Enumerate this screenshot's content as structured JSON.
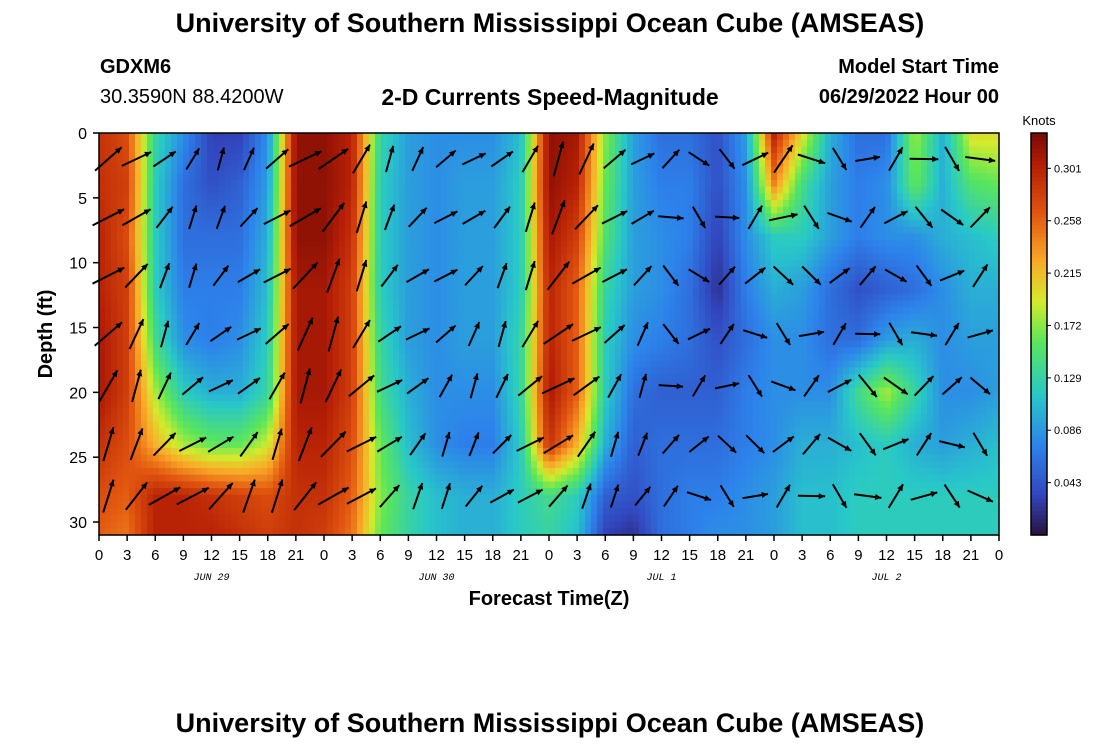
{
  "header": {
    "title": "University of Southern Mississippi Ocean Cube (AMSEAS)",
    "station": "GDXM6",
    "coords": "30.3590N  88.4200W",
    "subtitle": "2-D Currents Speed-Magnitude",
    "start_label": "Model Start Time",
    "start_value": "06/29/2022 Hour 00"
  },
  "footer": {
    "title": "University of Southern Mississippi Ocean Cube (AMSEAS)"
  },
  "chart_data": {
    "type": "heatmap",
    "xlabel": "Forecast Time(Z)",
    "ylabel": "Depth (ft)",
    "x_ticks": [
      "0",
      "3",
      "6",
      "9",
      "12",
      "15",
      "18",
      "21",
      "0",
      "3",
      "6",
      "9",
      "12",
      "15",
      "18",
      "21",
      "0",
      "3",
      "6",
      "9",
      "12",
      "15",
      "18",
      "21",
      "0",
      "3",
      "6",
      "9",
      "12",
      "15",
      "18",
      "21",
      "0"
    ],
    "date_labels": [
      "JUN 29",
      "JUN 30",
      "JUL 1",
      "JUL 2"
    ],
    "y_ticks": [
      0,
      5,
      10,
      15,
      20,
      25,
      30
    ],
    "ylim": [
      0,
      31
    ],
    "xlim_hours": [
      0,
      96
    ],
    "colorbar": {
      "unit": "Knots",
      "ticks": [
        0.301,
        0.258,
        0.215,
        0.172,
        0.129,
        0.086,
        0.043
      ],
      "range": [
        0.0,
        0.33
      ]
    },
    "field_description": "Approximate speed (knots) by forecast hour and depth band",
    "depths_ft": [
      0,
      4,
      8,
      12,
      16,
      20,
      24,
      28,
      31
    ],
    "hours": [
      0,
      3,
      6,
      9,
      12,
      15,
      18,
      21,
      24,
      27,
      30,
      33,
      36,
      39,
      42,
      45,
      48,
      51,
      54,
      57,
      60,
      63,
      66,
      69,
      72,
      75,
      78,
      81,
      84,
      87,
      90,
      93,
      96
    ],
    "speed": [
      [
        0.29,
        0.27,
        0.13,
        0.08,
        0.03,
        0.03,
        0.08,
        0.32,
        0.32,
        0.3,
        0.13,
        0.09,
        0.08,
        0.08,
        0.08,
        0.11,
        0.32,
        0.31,
        0.17,
        0.09,
        0.06,
        0.06,
        0.04,
        0.09,
        0.3,
        0.2,
        0.1,
        0.06,
        0.06,
        0.18,
        0.1,
        0.2,
        0.2
      ],
      [
        0.29,
        0.28,
        0.12,
        0.06,
        0.04,
        0.05,
        0.09,
        0.32,
        0.32,
        0.3,
        0.12,
        0.09,
        0.08,
        0.09,
        0.09,
        0.12,
        0.32,
        0.3,
        0.16,
        0.09,
        0.07,
        0.07,
        0.04,
        0.08,
        0.24,
        0.14,
        0.09,
        0.07,
        0.08,
        0.16,
        0.1,
        0.15,
        0.16
      ],
      [
        0.3,
        0.27,
        0.12,
        0.06,
        0.06,
        0.06,
        0.1,
        0.32,
        0.32,
        0.29,
        0.12,
        0.09,
        0.08,
        0.09,
        0.09,
        0.12,
        0.31,
        0.28,
        0.15,
        0.09,
        0.08,
        0.07,
        0.03,
        0.08,
        0.12,
        0.12,
        0.09,
        0.07,
        0.08,
        0.08,
        0.1,
        0.11,
        0.12
      ],
      [
        0.3,
        0.28,
        0.12,
        0.07,
        0.07,
        0.07,
        0.11,
        0.31,
        0.31,
        0.28,
        0.12,
        0.09,
        0.08,
        0.09,
        0.09,
        0.12,
        0.3,
        0.26,
        0.13,
        0.09,
        0.08,
        0.06,
        0.02,
        0.07,
        0.1,
        0.09,
        0.06,
        0.04,
        0.05,
        0.06,
        0.08,
        0.1,
        0.1
      ],
      [
        0.31,
        0.28,
        0.14,
        0.08,
        0.07,
        0.08,
        0.12,
        0.31,
        0.31,
        0.28,
        0.13,
        0.09,
        0.08,
        0.09,
        0.09,
        0.13,
        0.3,
        0.26,
        0.12,
        0.08,
        0.07,
        0.06,
        0.04,
        0.06,
        0.08,
        0.08,
        0.06,
        0.06,
        0.09,
        0.1,
        0.08,
        0.09,
        0.09
      ],
      [
        0.31,
        0.28,
        0.18,
        0.12,
        0.1,
        0.1,
        0.13,
        0.31,
        0.31,
        0.28,
        0.14,
        0.1,
        0.08,
        0.08,
        0.08,
        0.13,
        0.31,
        0.26,
        0.12,
        0.06,
        0.05,
        0.05,
        0.05,
        0.07,
        0.08,
        0.08,
        0.08,
        0.14,
        0.18,
        0.13,
        0.08,
        0.08,
        0.09
      ],
      [
        0.29,
        0.27,
        0.22,
        0.18,
        0.16,
        0.16,
        0.19,
        0.3,
        0.3,
        0.27,
        0.16,
        0.11,
        0.08,
        0.07,
        0.07,
        0.12,
        0.29,
        0.22,
        0.1,
        0.05,
        0.06,
        0.06,
        0.06,
        0.07,
        0.08,
        0.1,
        0.1,
        0.11,
        0.12,
        0.1,
        0.09,
        0.1,
        0.11
      ],
      [
        0.27,
        0.26,
        0.3,
        0.3,
        0.29,
        0.28,
        0.27,
        0.29,
        0.29,
        0.26,
        0.17,
        0.13,
        0.11,
        0.1,
        0.1,
        0.12,
        0.14,
        0.12,
        0.05,
        0.04,
        0.06,
        0.07,
        0.07,
        0.08,
        0.09,
        0.11,
        0.11,
        0.12,
        0.12,
        0.12,
        0.12,
        0.12,
        0.12
      ],
      [
        0.26,
        0.25,
        0.3,
        0.3,
        0.3,
        0.29,
        0.28,
        0.29,
        0.28,
        0.25,
        0.16,
        0.13,
        0.11,
        0.1,
        0.1,
        0.12,
        0.13,
        0.11,
        0.03,
        0.02,
        0.06,
        0.07,
        0.08,
        0.08,
        0.09,
        0.11,
        0.11,
        0.12,
        0.12,
        0.12,
        0.12,
        0.12,
        0.12
      ]
    ]
  }
}
